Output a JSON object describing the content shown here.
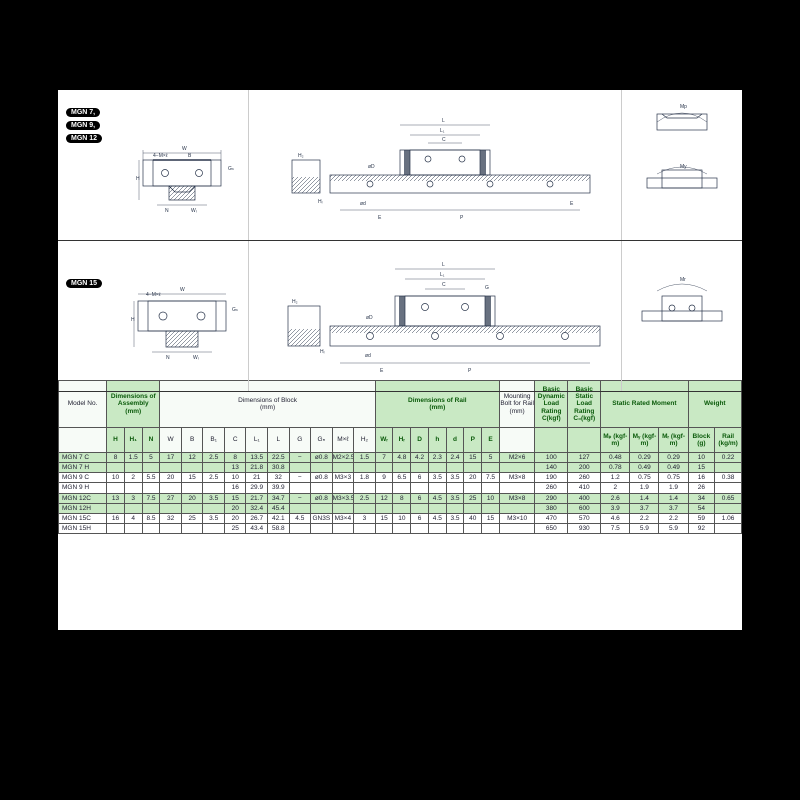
{
  "diagrams": {
    "row1_badges": [
      "MGN 7,",
      "MGN 9,",
      "MGN 12"
    ],
    "row2_badge": "MGN 15",
    "moment_labels": [
      "Mp",
      "My",
      "Mr"
    ]
  },
  "table": {
    "group_headers": [
      {
        "label": "Model No.",
        "span": 1
      },
      {
        "label": "Dimensions of Assembly (mm)",
        "span": 3,
        "green": true
      },
      {
        "label": "Dimensions of Block (mm)",
        "span": 10
      },
      {
        "label": "Dimensions of Rail (mm)",
        "span": 7,
        "green": true
      },
      {
        "label": "Mounting Bolt for Rail (mm)",
        "span": 1
      },
      {
        "label": "Basic Dynamic Load Rating C(kgf)",
        "span": 1,
        "green": true
      },
      {
        "label": "Basic Static Load Rating C₀(kgf)",
        "span": 1,
        "green": true
      },
      {
        "label": "Static Rated Moment",
        "span": 3,
        "green": true
      },
      {
        "label": "Weight",
        "span": 2,
        "green": true
      }
    ],
    "col_headers": [
      "",
      "H",
      "H₁",
      "N",
      "W",
      "B",
      "B₁",
      "C",
      "L₁",
      "L",
      "G",
      "Gₙ",
      "M×ℓ",
      "H₂",
      "Wᵣ",
      "Hᵣ",
      "D",
      "h",
      "d",
      "P",
      "E",
      "",
      "",
      "",
      "Mₚ (kgf-m)",
      "Mᵧ (kgf-m)",
      "Mᵣ (kgf-m)",
      "Block (g)",
      "Rail (kg/m)"
    ],
    "rows": [
      {
        "green": true,
        "model": "MGN 7 C",
        "cells": [
          "8",
          "1.5",
          "5",
          "17",
          "12",
          "2.5",
          "8",
          "13.5",
          "22.5",
          "−",
          "ø0.8",
          "M2×2.5",
          "1.5",
          "7",
          "4.8",
          "4.2",
          "2.3",
          "2.4",
          "15",
          "5",
          "M2×6",
          "100",
          "127",
          "0.48",
          "0.29",
          "0.29",
          "10",
          "0.22"
        ]
      },
      {
        "green": true,
        "model": "MGN 7 H",
        "cells": [
          "",
          "",
          "",
          "",
          "",
          "",
          "13",
          "21.8",
          "30.8",
          "",
          "",
          "",
          "",
          "",
          "",
          "",
          "",
          "",
          "",
          "",
          "",
          "140",
          "200",
          "0.78",
          "0.49",
          "0.49",
          "15",
          ""
        ]
      },
      {
        "green": false,
        "model": "MGN 9 C",
        "cells": [
          "10",
          "2",
          "5.5",
          "20",
          "15",
          "2.5",
          "10",
          "21",
          "32",
          "−",
          "ø0.8",
          "M3×3",
          "1.8",
          "9",
          "6.5",
          "6",
          "3.5",
          "3.5",
          "20",
          "7.5",
          "M3×8",
          "190",
          "260",
          "1.2",
          "0.75",
          "0.75",
          "16",
          "0.38"
        ]
      },
      {
        "green": false,
        "model": "MGN 9 H",
        "cells": [
          "",
          "",
          "",
          "",
          "",
          "",
          "16",
          "29.9",
          "39.9",
          "",
          "",
          "",
          "",
          "",
          "",
          "",
          "",
          "",
          "",
          "",
          "",
          "260",
          "410",
          "2",
          "1.9",
          "1.9",
          "26",
          ""
        ]
      },
      {
        "green": true,
        "model": "MGN 12C",
        "cells": [
          "13",
          "3",
          "7.5",
          "27",
          "20",
          "3.5",
          "15",
          "21.7",
          "34.7",
          "−",
          "ø0.8",
          "M3×3.5",
          "2.5",
          "12",
          "8",
          "6",
          "4.5",
          "3.5",
          "25",
          "10",
          "M3×8",
          "290",
          "400",
          "2.6",
          "1.4",
          "1.4",
          "34",
          "0.65"
        ]
      },
      {
        "green": true,
        "model": "MGN 12H",
        "cells": [
          "",
          "",
          "",
          "",
          "",
          "",
          "20",
          "32.4",
          "45.4",
          "",
          "",
          "",
          "",
          "",
          "",
          "",
          "",
          "",
          "",
          "",
          "",
          "380",
          "600",
          "3.9",
          "3.7",
          "3.7",
          "54",
          ""
        ]
      },
      {
        "green": false,
        "model": "MGN 15C",
        "cells": [
          "16",
          "4",
          "8.5",
          "32",
          "25",
          "3.5",
          "20",
          "26.7",
          "42.1",
          "4.5",
          "GN3S",
          "M3×4",
          "3",
          "15",
          "10",
          "6",
          "4.5",
          "3.5",
          "40",
          "15",
          "M3×10",
          "470",
          "570",
          "4.6",
          "2.2",
          "2.2",
          "59",
          "1.06"
        ]
      },
      {
        "green": false,
        "model": "MGN 15H",
        "cells": [
          "",
          "",
          "",
          "",
          "",
          "",
          "25",
          "43.4",
          "58.8",
          "",
          "",
          "",
          "",
          "",
          "",
          "",
          "",
          "",
          "",
          "",
          "",
          "650",
          "930",
          "7.5",
          "5.9",
          "5.9",
          "92",
          ""
        ]
      }
    ]
  },
  "colors": {
    "header_green": "#c9e9c4",
    "line": "#28344a"
  }
}
